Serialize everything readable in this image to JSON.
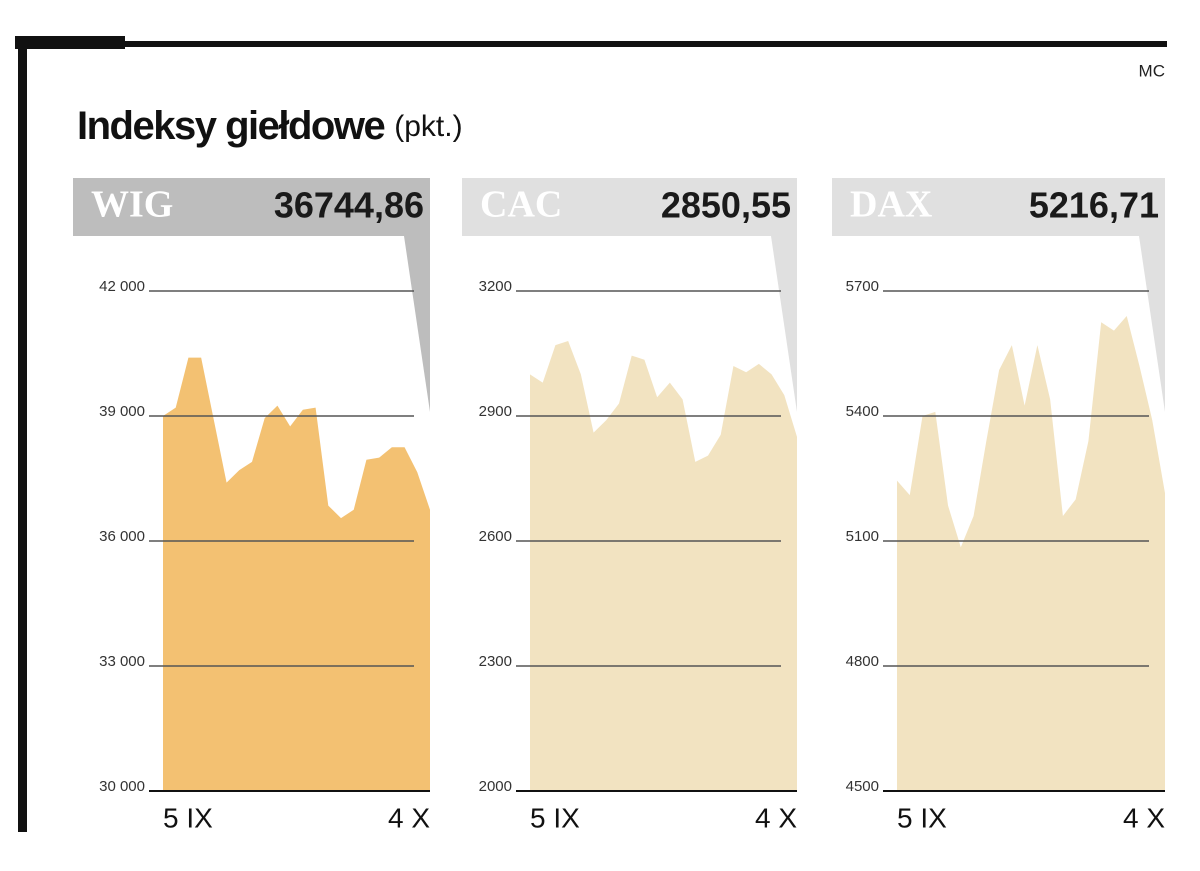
{
  "title": "Indeksy giełdowe",
  "unit": "(pkt.)",
  "credit": "MC",
  "chart_data": [
    {
      "type": "area",
      "title": "WIG",
      "subtitle": "36744,86",
      "color": "#f3c172",
      "header_color": "#bdbdbd",
      "categories": [
        "5 IX",
        null,
        null,
        null,
        null,
        null,
        null,
        null,
        null,
        null,
        null,
        null,
        null,
        null,
        null,
        null,
        null,
        null,
        null,
        null,
        null,
        "4 X"
      ],
      "values": [
        39000,
        39200,
        40400,
        40400,
        38900,
        37400,
        37700,
        37900,
        38950,
        39250,
        38750,
        39150,
        39200,
        36850,
        36550,
        36750,
        37950,
        38000,
        38250,
        38250,
        37650,
        36750
      ],
      "ylim": [
        30000,
        42000
      ],
      "yticks": [
        {
          "value": 30000,
          "label": "30 000"
        },
        {
          "value": 33000,
          "label": "33 000"
        },
        {
          "value": 36000,
          "label": "36 000"
        },
        {
          "value": 39000,
          "label": "39 000"
        },
        {
          "value": 42000,
          "label": "42 000"
        }
      ],
      "grid": true
    },
    {
      "type": "area",
      "title": "CAC",
      "subtitle": "2850,55",
      "color": "#f2e3c1",
      "header_color": "#e0e0e0",
      "categories": [
        "5 IX",
        null,
        null,
        null,
        null,
        null,
        null,
        null,
        null,
        null,
        null,
        null,
        null,
        null,
        null,
        null,
        null,
        null,
        null,
        null,
        null,
        "4 X"
      ],
      "values": [
        3000,
        2980,
        3070,
        3080,
        3000,
        2860,
        2890,
        2930,
        3045,
        3035,
        2945,
        2980,
        2940,
        2790,
        2805,
        2855,
        3020,
        3005,
        3025,
        3000,
        2950,
        2850
      ],
      "ylim": [
        2000,
        3200
      ],
      "yticks": [
        2000,
        2300,
        2600,
        2900,
        3200
      ],
      "grid": true
    },
    {
      "type": "area",
      "title": "DAX",
      "subtitle": "5216,71",
      "color": "#f2e3c1",
      "header_color": "#e0e0e0",
      "categories": [
        "5 IX",
        null,
        null,
        null,
        null,
        null,
        null,
        null,
        null,
        null,
        null,
        null,
        null,
        null,
        null,
        null,
        null,
        null,
        null,
        null,
        null,
        "4 X"
      ],
      "values": [
        5245,
        5210,
        5400,
        5410,
        5185,
        5085,
        5160,
        5340,
        5510,
        5570,
        5425,
        5570,
        5440,
        5160,
        5200,
        5340,
        5625,
        5605,
        5640,
        5520,
        5390,
        5215
      ],
      "ylim": [
        4500,
        5700
      ],
      "yticks": [
        4500,
        4800,
        5100,
        5400,
        5700
      ],
      "grid": true
    }
  ]
}
